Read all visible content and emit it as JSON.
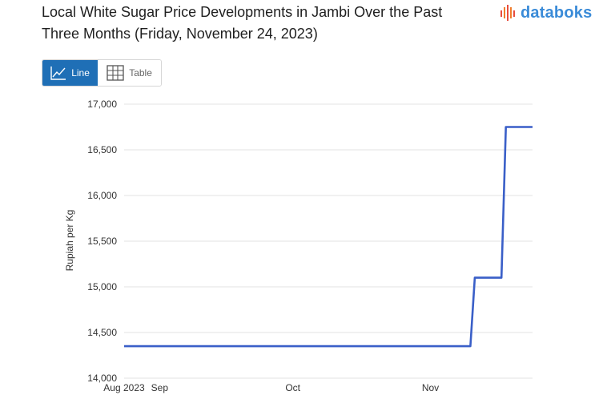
{
  "header": {
    "title_line1": "Local White Sugar Price Developments in Jambi Over the Past",
    "title_line2": "Three Months (Friday, November 24, 2023)",
    "logo_text": "databoks"
  },
  "toggle": {
    "line_label": "Line",
    "table_label": "Table"
  },
  "colors": {
    "line": "#3a5fc8",
    "grid": "#e3e3e3",
    "accent": "#1f6fb6",
    "logo": "#3a8bd8"
  },
  "chart_data": {
    "type": "line",
    "title": "Local White Sugar Price Developments in Jambi Over the Past Three Months (Friday, November 24, 2023)",
    "ylabel": "Rupiah per Kg",
    "xlabel": "",
    "ylim": [
      14000,
      17000
    ],
    "xlim": [
      "2023-08-24",
      "2023-11-24"
    ],
    "yticks": [
      14000,
      14500,
      15000,
      15500,
      16000,
      16500,
      17000
    ],
    "ytick_labels": [
      "14,000",
      "14,500",
      "15,000",
      "15,500",
      "16,000",
      "16,500",
      "17,000"
    ],
    "xticks": [
      {
        "date": "2023-08-24",
        "label": "Aug 2023"
      },
      {
        "date": "2023-09-01",
        "label": "Sep"
      },
      {
        "date": "2023-10-01",
        "label": "Oct"
      },
      {
        "date": "2023-11-01",
        "label": "Nov"
      }
    ],
    "grid": true,
    "legend": "none",
    "series": [
      {
        "x": [
          "2023-08-24",
          "2023-11-10",
          "2023-11-11",
          "2023-11-17",
          "2023-11-18",
          "2023-11-24"
        ],
        "values": [
          14350,
          14350,
          15100,
          15100,
          16750,
          16750
        ]
      }
    ]
  }
}
